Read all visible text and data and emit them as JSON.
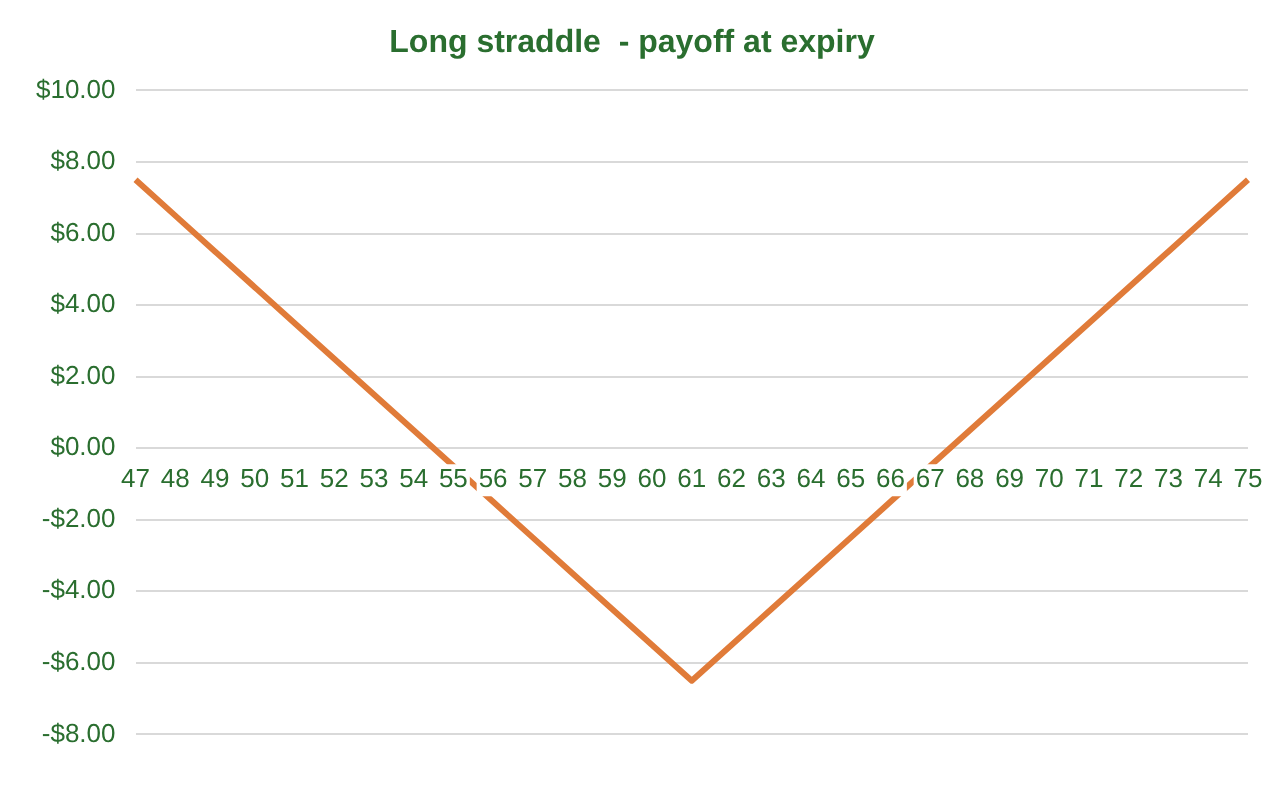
{
  "chart_data": {
    "type": "line",
    "title": "Long straddle  - payoff at expiry",
    "categories": [
      "47",
      "48",
      "49",
      "50",
      "51",
      "52",
      "53",
      "54",
      "55",
      "56",
      "57",
      "58",
      "59",
      "60",
      "61",
      "62",
      "63",
      "64",
      "65",
      "66",
      "67",
      "68",
      "69",
      "70",
      "71",
      "72",
      "73",
      "74",
      "75"
    ],
    "series": [
      {
        "color": "#e07b39",
        "values": [
          7.5,
          6.5,
          5.5,
          4.5,
          3.5,
          2.5,
          1.5,
          0.5,
          -0.5,
          -1.5,
          -2.5,
          -3.5,
          -4.5,
          -5.5,
          -6.5,
          -5.5,
          -4.5,
          -3.5,
          -2.5,
          -1.5,
          -0.5,
          0.5,
          1.5,
          2.5,
          3.5,
          4.5,
          5.5,
          6.5,
          7.5
        ]
      }
    ],
    "ylim": [
      -8,
      10
    ],
    "yticks": [
      {
        "value": -8,
        "label": "-$8.00"
      },
      {
        "value": -6,
        "label": "-$6.00"
      },
      {
        "value": -4,
        "label": "-$4.00"
      },
      {
        "value": -2,
        "label": "-$2.00"
      },
      {
        "value": 0,
        "label": "$0.00"
      },
      {
        "value": 2,
        "label": "$2.00"
      },
      {
        "value": 4,
        "label": "$4.00"
      },
      {
        "value": 6,
        "label": "$6.00"
      },
      {
        "value": 8,
        "label": "$8.00"
      },
      {
        "value": 10,
        "label": "$10.00"
      }
    ],
    "grid": "y",
    "legend": false,
    "marker": "none",
    "line_style": "solid"
  }
}
